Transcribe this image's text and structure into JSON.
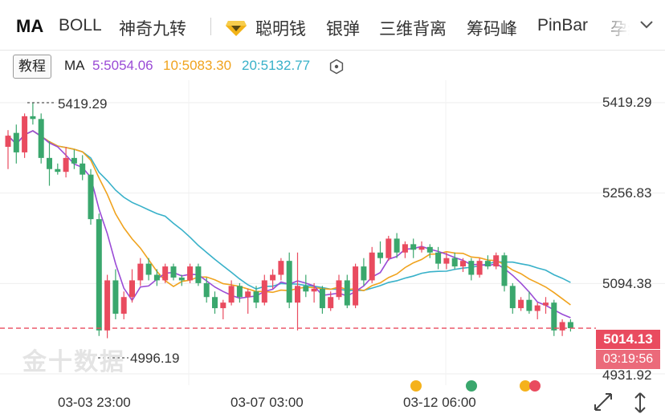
{
  "tabs": [
    {
      "label": "MA",
      "active": true
    },
    {
      "label": "BOLL"
    },
    {
      "label": "神奇九转"
    },
    {
      "label": "聪明钱",
      "icon": "diamond-icon"
    },
    {
      "label": "银弹"
    },
    {
      "label": "三维背离"
    },
    {
      "label": "筹码峰"
    },
    {
      "label": "PinBar"
    },
    {
      "label": "孕线"
    }
  ],
  "ma": {
    "tutorial_label": "教程",
    "name": "MA",
    "ma5": "5:5054.06",
    "ma10": "10:5083.30",
    "ma20": "20:5132.77",
    "colors": {
      "ma5": "#9a4bd6",
      "ma10": "#f0a31e",
      "ma20": "#38b1c9",
      "up": "#e94b5f",
      "down": "#3aa76d"
    }
  },
  "price_axis": {
    "labels": [
      "5419.29",
      "5256.83",
      "5094.38",
      "4931.92"
    ],
    "current_price": "5014.13",
    "countdown": "03:19:56"
  },
  "annotations": {
    "high": "5419.29",
    "low": "4996.19"
  },
  "time_axis": [
    "03-03 23:00",
    "03-07 03:00",
    "03-12 06:00"
  ],
  "watermark": "金十数据",
  "event_dots": [
    "#f5b21b",
    "#3aa76d",
    "#f5b21b",
    "#e94b5f"
  ],
  "candles": [
    [
      5340,
      5370,
      5300,
      5360
    ],
    [
      5365,
      5380,
      5310,
      5330
    ],
    [
      5330,
      5400,
      5320,
      5395
    ],
    [
      5395,
      5419,
      5380,
      5390
    ],
    [
      5390,
      5400,
      5310,
      5320
    ],
    [
      5320,
      5350,
      5270,
      5300
    ],
    [
      5300,
      5310,
      5290,
      5295
    ],
    [
      5295,
      5340,
      5285,
      5320
    ],
    [
      5320,
      5335,
      5300,
      5310
    ],
    [
      5310,
      5325,
      5280,
      5290
    ],
    [
      5290,
      5300,
      5200,
      5210
    ],
    [
      5210,
      5220,
      5000,
      5010
    ],
    [
      5010,
      5110,
      4996,
      5100
    ],
    [
      5100,
      5120,
      5030,
      5040
    ],
    [
      5040,
      5080,
      5030,
      5070
    ],
    [
      5070,
      5120,
      5060,
      5100
    ],
    [
      5100,
      5140,
      5090,
      5130
    ],
    [
      5130,
      5140,
      5100,
      5110
    ],
    [
      5110,
      5120,
      5090,
      5100
    ],
    [
      5100,
      5130,
      5095,
      5125
    ],
    [
      5125,
      5130,
      5100,
      5105
    ],
    [
      5105,
      5110,
      5090,
      5100
    ],
    [
      5100,
      5130,
      5095,
      5125
    ],
    [
      5125,
      5130,
      5090,
      5095
    ],
    [
      5095,
      5105,
      5060,
      5070
    ],
    [
      5070,
      5080,
      5040,
      5050
    ],
    [
      5050,
      5065,
      5030,
      5060
    ],
    [
      5060,
      5100,
      5055,
      5090
    ],
    [
      5090,
      5095,
      5060,
      5070
    ],
    [
      5070,
      5085,
      5040,
      5080
    ],
    [
      5080,
      5090,
      5050,
      5060
    ],
    [
      5060,
      5110,
      5055,
      5100
    ],
    [
      5100,
      5120,
      5085,
      5110
    ],
    [
      5110,
      5140,
      5100,
      5135
    ],
    [
      5135,
      5150,
      5050,
      5060
    ],
    [
      5060,
      5150,
      5010,
      5090
    ],
    [
      5090,
      5110,
      5070,
      5080
    ],
    [
      5080,
      5095,
      5060,
      5085
    ],
    [
      5085,
      5090,
      5040,
      5050
    ],
    [
      5050,
      5080,
      5045,
      5070
    ],
    [
      5070,
      5110,
      5065,
      5100
    ],
    [
      5100,
      5110,
      5050,
      5055
    ],
    [
      5055,
      5130,
      5050,
      5125
    ],
    [
      5125,
      5140,
      5090,
      5100
    ],
    [
      5100,
      5160,
      5095,
      5150
    ],
    [
      5150,
      5170,
      5130,
      5140
    ],
    [
      5140,
      5180,
      5135,
      5175
    ],
    [
      5175,
      5185,
      5140,
      5150
    ],
    [
      5150,
      5170,
      5140,
      5165
    ],
    [
      5165,
      5175,
      5140,
      5155
    ],
    [
      5155,
      5170,
      5150,
      5160
    ],
    [
      5160,
      5165,
      5140,
      5150
    ],
    [
      5150,
      5160,
      5120,
      5130
    ],
    [
      5130,
      5150,
      5120,
      5140
    ],
    [
      5140,
      5150,
      5120,
      5125
    ],
    [
      5125,
      5140,
      5115,
      5135
    ],
    [
      5135,
      5140,
      5100,
      5110
    ],
    [
      5110,
      5140,
      5105,
      5135
    ],
    [
      5135,
      5145,
      5120,
      5125
    ],
    [
      5125,
      5150,
      5120,
      5145
    ],
    [
      5145,
      5150,
      5080,
      5090
    ],
    [
      5090,
      5095,
      5040,
      5050
    ],
    [
      5050,
      5070,
      5045,
      5065
    ],
    [
      5065,
      5080,
      5040,
      5045
    ],
    [
      5045,
      5060,
      5030,
      5055
    ],
    [
      5055,
      5070,
      5040,
      5060
    ],
    [
      5060,
      5065,
      5000,
      5010
    ],
    [
      5010,
      5030,
      5000,
      5025
    ],
    [
      5025,
      5030,
      5008,
      5014
    ]
  ]
}
